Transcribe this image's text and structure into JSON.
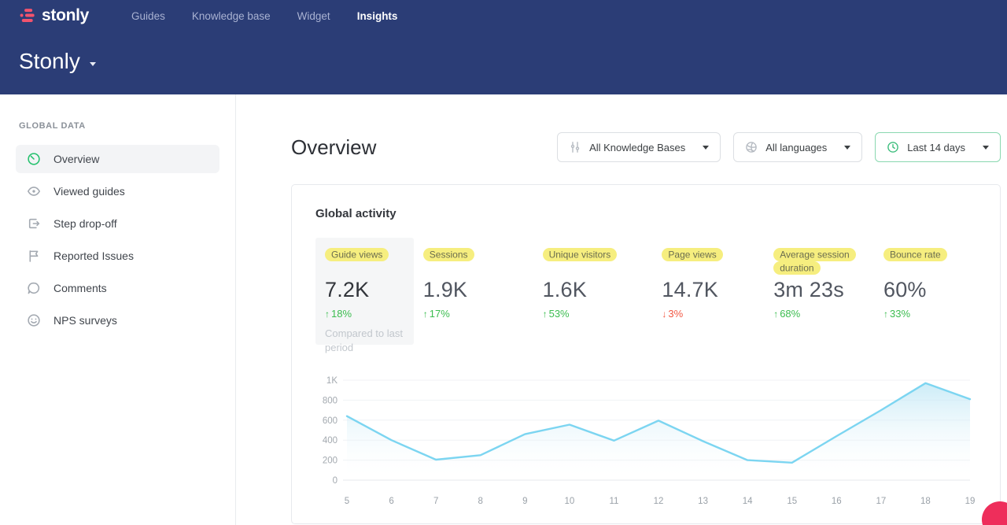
{
  "brand": {
    "logo_text": "stonly",
    "workspace_name": "Stonly"
  },
  "navbar": {
    "items": [
      {
        "label": "Guides",
        "active": false
      },
      {
        "label": "Knowledge base",
        "active": false
      },
      {
        "label": "Widget",
        "active": false
      },
      {
        "label": "Insights",
        "active": true
      }
    ]
  },
  "sidebar": {
    "section": "GLOBAL DATA",
    "items": [
      {
        "label": "Overview",
        "icon": "gauge-icon",
        "active": true
      },
      {
        "label": "Viewed guides",
        "icon": "eye-icon",
        "active": false
      },
      {
        "label": "Step drop-off",
        "icon": "step-exit-icon",
        "active": false
      },
      {
        "label": "Reported Issues",
        "icon": "flag-icon",
        "active": false
      },
      {
        "label": "Comments",
        "icon": "comment-icon",
        "active": false
      },
      {
        "label": "NPS surveys",
        "icon": "smiley-icon",
        "active": false
      }
    ]
  },
  "main": {
    "title": "Overview",
    "filters": [
      {
        "label": "All Knowledge Bases",
        "icon": "sliders-icon",
        "active": false
      },
      {
        "label": "All languages",
        "icon": "globe-icon",
        "active": false
      },
      {
        "label": "Last 14 days",
        "icon": "clock-icon",
        "active": true
      }
    ],
    "card": {
      "title": "Global activity",
      "metrics": [
        {
          "label": "Guide views",
          "value": "7.2K",
          "delta": "18%",
          "direction": "up",
          "caption": "Compared to last period",
          "selected": true
        },
        {
          "label": "Sessions",
          "value": "1.9K",
          "delta": "17%",
          "direction": "up",
          "selected": false
        },
        {
          "label": "Unique visitors",
          "value": "1.6K",
          "delta": "53%",
          "direction": "up",
          "selected": false
        },
        {
          "label": "Page views",
          "value": "14.7K",
          "delta": "3%",
          "direction": "down",
          "selected": false
        },
        {
          "label": "Average session duration",
          "value": "3m 23s",
          "delta": "68%",
          "direction": "up",
          "selected": false
        },
        {
          "label": "Bounce rate",
          "value": "60%",
          "delta": "33%",
          "direction": "up",
          "selected": false
        }
      ]
    }
  },
  "chart_data": {
    "type": "area",
    "title": "Global activity over last 14 days",
    "x": [
      5,
      6,
      7,
      8,
      9,
      10,
      11,
      12,
      13,
      14,
      15,
      16,
      17,
      18,
      19
    ],
    "values": [
      640,
      400,
      205,
      250,
      460,
      555,
      395,
      595,
      390,
      200,
      175,
      440,
      700,
      970,
      810
    ],
    "xlabel": "",
    "ylabel": "",
    "ylim": [
      0,
      1000
    ],
    "y_tick_values": [
      0,
      200,
      400,
      600,
      800,
      1000
    ],
    "y_tick_labels": [
      "0",
      "200",
      "400",
      "600",
      "800",
      "1K"
    ],
    "grid": true,
    "legend": "none"
  },
  "colors": {
    "header_navy": "#2b3d76",
    "brand_pink": "#f2536d",
    "chat_bubble_pink": "#ee2e5b",
    "highlight_yellow": "#f6ee7f",
    "positive_green": "#3cbd50",
    "negative_red": "#f25742",
    "active_sidebar_green": "#25c16e",
    "active_filter_border_green": "#8ad8b0",
    "chart_line_blue": "#7cd5f1"
  }
}
